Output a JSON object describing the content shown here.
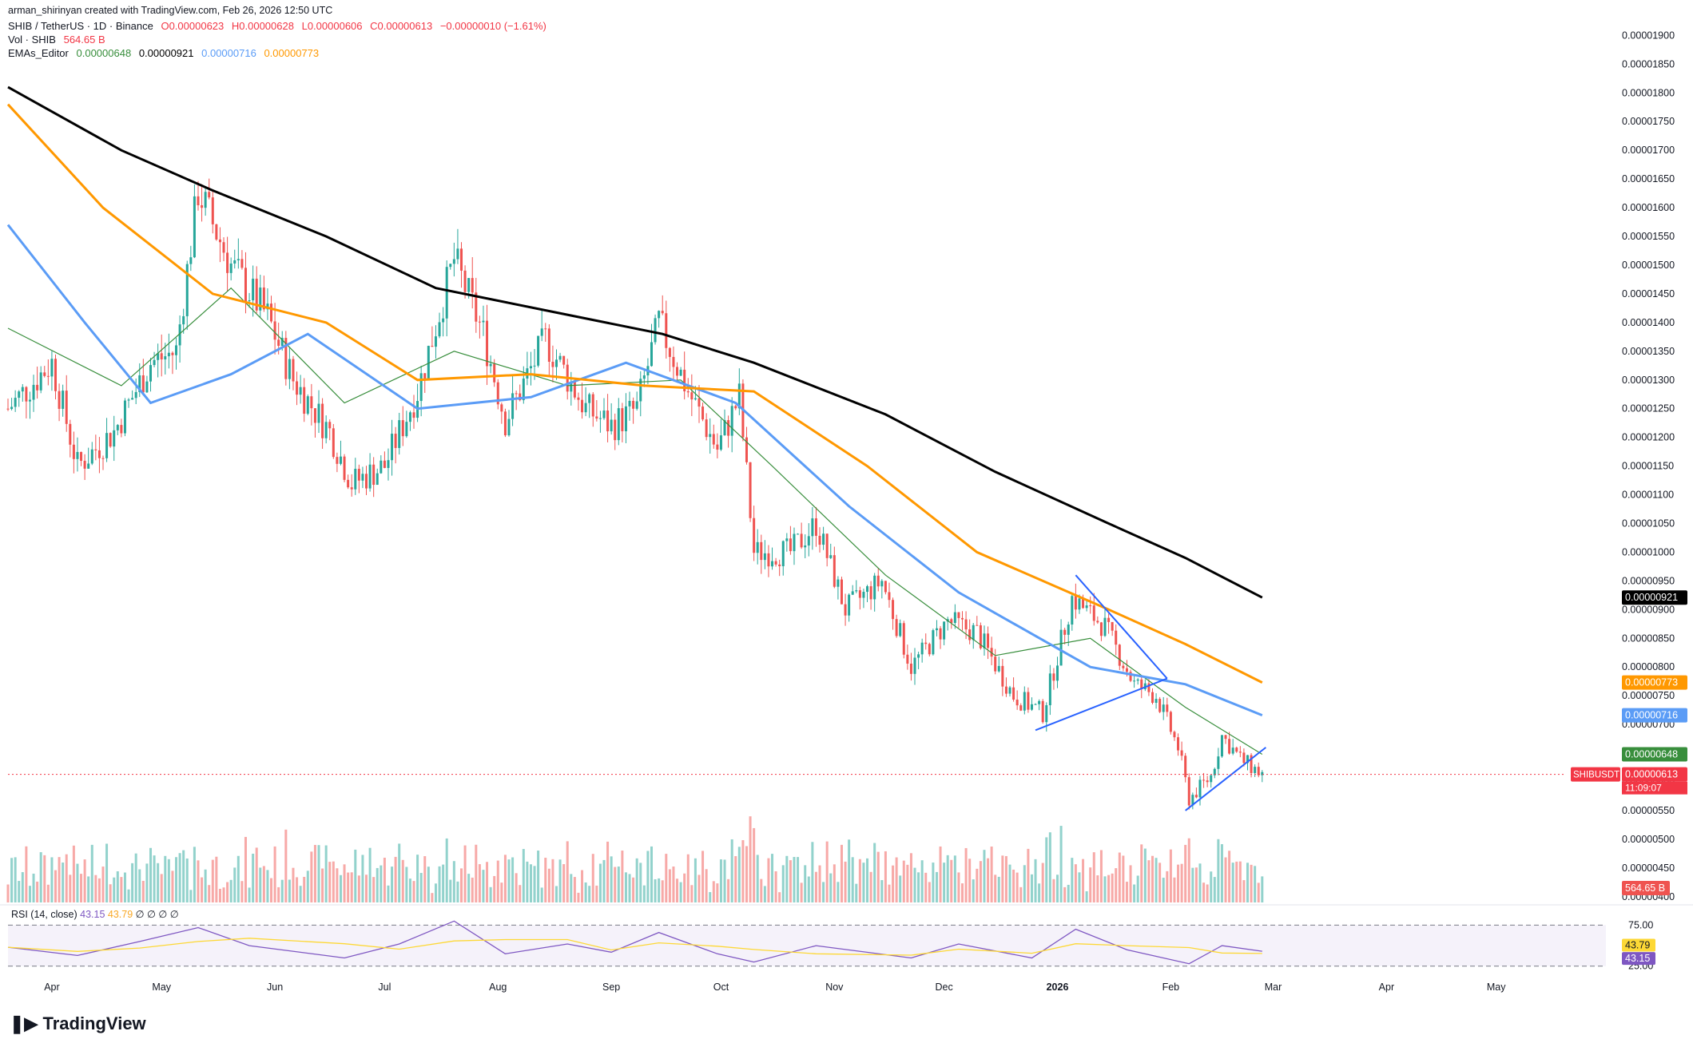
{
  "header": {
    "credit": "arman_shirinyan created with TradingView.com, Feb 26, 2026 12:50 UTC",
    "symbol_line": {
      "symbol": "SHIB / TetherUS · 1D · Binance",
      "open": "O0.00000623",
      "high": "H0.00000628",
      "low": "L0.00000606",
      "close": "C0.00000613",
      "change": "−0.00000010 (−1.61%)"
    },
    "vol_line": {
      "label": "Vol · SHIB",
      "value": "564.65 B"
    },
    "ema_line": {
      "label": "EMAs_Editor",
      "v1": "0.00000648",
      "v2": "0.00000921",
      "v3": "0.00000716",
      "v4": "0.00000773"
    }
  },
  "colors": {
    "up": "#26a69a",
    "down": "#ef5350",
    "ema_green": "#388e3c",
    "ema_black": "#000000",
    "ema_blue": "#5b9cf6",
    "ema_orange": "#ff9800",
    "rsi": "#7e57c2",
    "rsi_ma": "#fdd835",
    "trendline": "#2962ff"
  },
  "chart_data": {
    "type": "line",
    "title": "SHIB / TetherUS · 1D · Binance",
    "x_tick_labels": [
      "Apr",
      "May",
      "Jun",
      "Jul",
      "Aug",
      "Sep",
      "Oct",
      "Nov",
      "Dec",
      "2026",
      "Feb",
      "Mar",
      "Apr",
      "May"
    ],
    "y_tick_labels": [
      "0.00001900",
      "0.00001850",
      "0.00001800",
      "0.00001750",
      "0.00001700",
      "0.00001650",
      "0.00001600",
      "0.00001550",
      "0.00001500",
      "0.00001450",
      "0.00001400",
      "0.00001350",
      "0.00001300",
      "0.00001250",
      "0.00001200",
      "0.00001150",
      "0.00001100",
      "0.00001050",
      "0.00001000",
      "0.00000950",
      "0.00000900",
      "0.00000850",
      "0.00000800",
      "0.00000750",
      "0.00000700",
      "0.00000650",
      "0.00000600",
      "0.00000550",
      "0.00000500",
      "0.00000450",
      "0.00000400"
    ],
    "ylim": [
      3.9e-06,
      1.92e-05
    ],
    "price_series": [
      {
        "date": "2025-03-20",
        "price": 1.25e-05
      },
      {
        "date": "2025-04-01",
        "price": 1.33e-05
      },
      {
        "date": "2025-04-08",
        "price": 1.15e-05
      },
      {
        "date": "2025-04-18",
        "price": 1.21e-05
      },
      {
        "date": "2025-04-28",
        "price": 1.33e-05
      },
      {
        "date": "2025-05-05",
        "price": 1.35e-05
      },
      {
        "date": "2025-05-11",
        "price": 1.63e-05
      },
      {
        "date": "2025-05-20",
        "price": 1.5e-05
      },
      {
        "date": "2025-05-30",
        "price": 1.41e-05
      },
      {
        "date": "2025-06-06",
        "price": 1.3e-05
      },
      {
        "date": "2025-06-16",
        "price": 1.21e-05
      },
      {
        "date": "2025-06-22",
        "price": 1.12e-05
      },
      {
        "date": "2025-07-01",
        "price": 1.15e-05
      },
      {
        "date": "2025-07-10",
        "price": 1.28e-05
      },
      {
        "date": "2025-07-20",
        "price": 1.51e-05
      },
      {
        "date": "2025-07-28",
        "price": 1.38e-05
      },
      {
        "date": "2025-08-03",
        "price": 1.23e-05
      },
      {
        "date": "2025-08-14",
        "price": 1.37e-05
      },
      {
        "date": "2025-08-25",
        "price": 1.25e-05
      },
      {
        "date": "2025-09-01",
        "price": 1.22e-05
      },
      {
        "date": "2025-09-08",
        "price": 1.25e-05
      },
      {
        "date": "2025-09-14",
        "price": 1.4e-05
      },
      {
        "date": "2025-09-22",
        "price": 1.28e-05
      },
      {
        "date": "2025-09-30",
        "price": 1.18e-05
      },
      {
        "date": "2025-10-06",
        "price": 1.27e-05
      },
      {
        "date": "2025-10-10",
        "price": 1e-05
      },
      {
        "date": "2025-10-20",
        "price": 1e-05
      },
      {
        "date": "2025-10-27",
        "price": 1.05e-05
      },
      {
        "date": "2025-11-04",
        "price": 9e-06
      },
      {
        "date": "2025-11-14",
        "price": 9.5e-06
      },
      {
        "date": "2025-11-22",
        "price": 8e-06
      },
      {
        "date": "2025-12-02",
        "price": 8.8e-06
      },
      {
        "date": "2025-12-10",
        "price": 8.6e-06
      },
      {
        "date": "2025-12-20",
        "price": 7.5e-06
      },
      {
        "date": "2025-12-28",
        "price": 7.2e-06
      },
      {
        "date": "2026-01-05",
        "price": 9.2e-06
      },
      {
        "date": "2026-01-14",
        "price": 8.7e-06
      },
      {
        "date": "2026-01-22",
        "price": 7.7e-06
      },
      {
        "date": "2026-01-28",
        "price": 7.5e-06
      },
      {
        "date": "2026-02-03",
        "price": 6.6e-06
      },
      {
        "date": "2026-02-06",
        "price": 5.7e-06
      },
      {
        "date": "2026-02-12",
        "price": 6.1e-06
      },
      {
        "date": "2026-02-15",
        "price": 6.8e-06
      },
      {
        "date": "2026-02-20",
        "price": 6.4e-06
      },
      {
        "date": "2026-02-26",
        "price": 6.13e-06
      }
    ],
    "ema_series": [
      {
        "name": "EMA 0.00000648",
        "color": "#388e3c",
        "points": [
          {
            "date": "2025-03-20",
            "v": 1.39e-05
          },
          {
            "date": "2025-04-20",
            "v": 1.29e-05
          },
          {
            "date": "2025-05-20",
            "v": 1.46e-05
          },
          {
            "date": "2025-06-20",
            "v": 1.26e-05
          },
          {
            "date": "2025-07-20",
            "v": 1.35e-05
          },
          {
            "date": "2025-08-20",
            "v": 1.29e-05
          },
          {
            "date": "2025-09-20",
            "v": 1.3e-05
          },
          {
            "date": "2025-10-15",
            "v": 1.15e-05
          },
          {
            "date": "2025-11-15",
            "v": 9.6e-06
          },
          {
            "date": "2025-12-15",
            "v": 8.2e-06
          },
          {
            "date": "2026-01-10",
            "v": 8.5e-06
          },
          {
            "date": "2026-02-05",
            "v": 7.3e-06
          },
          {
            "date": "2026-02-26",
            "v": 6.48e-06
          }
        ]
      },
      {
        "name": "EMA 0.00000921",
        "color": "#000000",
        "points": [
          {
            "date": "2025-03-20",
            "v": 1.81e-05
          },
          {
            "date": "2025-04-20",
            "v": 1.7e-05
          },
          {
            "date": "2025-05-15",
            "v": 1.63e-05
          },
          {
            "date": "2025-06-15",
            "v": 1.55e-05
          },
          {
            "date": "2025-07-15",
            "v": 1.46e-05
          },
          {
            "date": "2025-08-15",
            "v": 1.42e-05
          },
          {
            "date": "2025-09-15",
            "v": 1.38e-05
          },
          {
            "date": "2025-10-10",
            "v": 1.33e-05
          },
          {
            "date": "2025-11-15",
            "v": 1.24e-05
          },
          {
            "date": "2025-12-15",
            "v": 1.14e-05
          },
          {
            "date": "2026-01-15",
            "v": 1.05e-05
          },
          {
            "date": "2026-02-05",
            "v": 9.9e-06
          },
          {
            "date": "2026-02-26",
            "v": 9.21e-06
          }
        ]
      },
      {
        "name": "EMA 0.00000716",
        "color": "#5b9cf6",
        "points": [
          {
            "date": "2025-03-20",
            "v": 1.57e-05
          },
          {
            "date": "2025-04-10",
            "v": 1.4e-05
          },
          {
            "date": "2025-04-28",
            "v": 1.26e-05
          },
          {
            "date": "2025-05-20",
            "v": 1.31e-05
          },
          {
            "date": "2025-06-10",
            "v": 1.38e-05
          },
          {
            "date": "2025-07-10",
            "v": 1.25e-05
          },
          {
            "date": "2025-08-10",
            "v": 1.27e-05
          },
          {
            "date": "2025-09-05",
            "v": 1.33e-05
          },
          {
            "date": "2025-10-05",
            "v": 1.26e-05
          },
          {
            "date": "2025-11-05",
            "v": 1.08e-05
          },
          {
            "date": "2025-12-05",
            "v": 9.3e-06
          },
          {
            "date": "2026-01-10",
            "v": 8e-06
          },
          {
            "date": "2026-02-05",
            "v": 7.7e-06
          },
          {
            "date": "2026-02-26",
            "v": 7.16e-06
          }
        ]
      },
      {
        "name": "EMA 0.00000773",
        "color": "#ff9800",
        "points": [
          {
            "date": "2025-03-20",
            "v": 1.78e-05
          },
          {
            "date": "2025-04-15",
            "v": 1.6e-05
          },
          {
            "date": "2025-05-15",
            "v": 1.45e-05
          },
          {
            "date": "2025-06-15",
            "v": 1.4e-05
          },
          {
            "date": "2025-07-10",
            "v": 1.3e-05
          },
          {
            "date": "2025-08-10",
            "v": 1.31e-05
          },
          {
            "date": "2025-09-10",
            "v": 1.29e-05
          },
          {
            "date": "2025-10-10",
            "v": 1.28e-05
          },
          {
            "date": "2025-11-10",
            "v": 1.15e-05
          },
          {
            "date": "2025-12-10",
            "v": 1e-05
          },
          {
            "date": "2026-01-15",
            "v": 9e-06
          },
          {
            "date": "2026-02-05",
            "v": 8.4e-06
          },
          {
            "date": "2026-02-26",
            "v": 7.73e-06
          }
        ]
      }
    ],
    "trendlines": [
      {
        "from": {
          "date": "2026-01-06",
          "price": 9.6e-06
        },
        "to": {
          "date": "2026-01-31",
          "price": 7.8e-06
        }
      },
      {
        "from": {
          "date": "2025-12-26",
          "price": 6.9e-06
        },
        "to": {
          "date": "2026-01-31",
          "price": 7.8e-06
        }
      },
      {
        "from": {
          "date": "2026-02-05",
          "price": 5.5e-06
        },
        "to": {
          "date": "2026-02-27",
          "price": 6.6e-06
        }
      }
    ],
    "current_price": 6.13e-06,
    "last_price_tags": [
      {
        "label": "0.00000921",
        "price": 9.21e-06,
        "color": "#000000"
      },
      {
        "label": "0.00000773",
        "price": 7.73e-06,
        "color": "#ff9800"
      },
      {
        "label": "0.00000716",
        "price": 7.16e-06,
        "color": "#5b9cf6"
      },
      {
        "label": "0.00000648",
        "price": 6.48e-06,
        "color": "#388e3c"
      },
      {
        "label": "0.00000613",
        "price": 6.13e-06,
        "color": "#f23645"
      }
    ],
    "symbol_tag": "SHIBUSDT",
    "countdown": "11:09:07",
    "volume_tag": "564.65 B",
    "rsi": {
      "label": "RSI (14, close)",
      "value": "43.15",
      "ma_value": "43.79",
      "zeros": "∅ ∅ ∅ ∅",
      "upper": "75.00",
      "lower": "25.00",
      "series": [
        {
          "date": "2025-03-20",
          "v": 48
        },
        {
          "date": "2025-04-08",
          "v": 38
        },
        {
          "date": "2025-04-25",
          "v": 55
        },
        {
          "date": "2025-05-11",
          "v": 72
        },
        {
          "date": "2025-05-25",
          "v": 50
        },
        {
          "date": "2025-06-20",
          "v": 35
        },
        {
          "date": "2025-07-05",
          "v": 52
        },
        {
          "date": "2025-07-20",
          "v": 80
        },
        {
          "date": "2025-08-03",
          "v": 40
        },
        {
          "date": "2025-08-20",
          "v": 52
        },
        {
          "date": "2025-09-01",
          "v": 42
        },
        {
          "date": "2025-09-14",
          "v": 66
        },
        {
          "date": "2025-09-30",
          "v": 40
        },
        {
          "date": "2025-10-10",
          "v": 30
        },
        {
          "date": "2025-10-27",
          "v": 50
        },
        {
          "date": "2025-11-22",
          "v": 35
        },
        {
          "date": "2025-12-05",
          "v": 52
        },
        {
          "date": "2025-12-25",
          "v": 35
        },
        {
          "date": "2026-01-06",
          "v": 70
        },
        {
          "date": "2026-01-20",
          "v": 45
        },
        {
          "date": "2026-02-06",
          "v": 28
        },
        {
          "date": "2026-02-15",
          "v": 50
        },
        {
          "date": "2026-02-26",
          "v": 43.15
        }
      ]
    },
    "grid": false,
    "legend_placement": "top-left"
  },
  "branding": {
    "logo_text": "TradingView"
  }
}
